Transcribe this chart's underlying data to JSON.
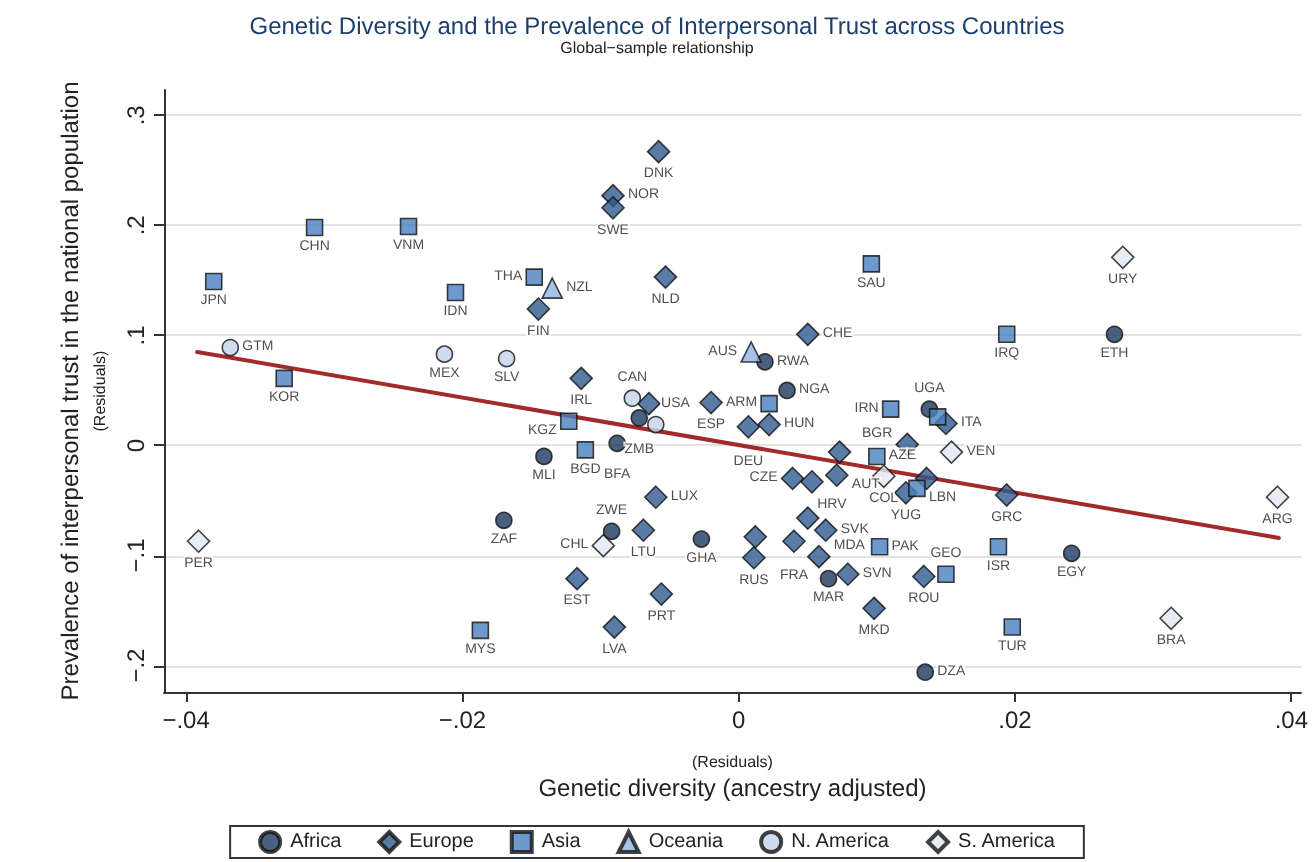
{
  "chart_data": {
    "type": "scatter",
    "title": "Genetic Diversity and the Prevalence of Interpersonal Trust across Countries",
    "subtitle": "Global−sample relationship",
    "xlabel": "(Residuals)\nGenetic diversity (ancestry adjusted)",
    "ylabel": "Prevalence of interpersonal trust in the national population\n(Residuals)",
    "xlim": [
      -0.0416,
      0.0407
    ],
    "ylim": [
      -0.224,
      0.323
    ],
    "xticks": [
      {
        "value": -0.04,
        "label": "−.04"
      },
      {
        "value": -0.02,
        "label": "−.02"
      },
      0,
      {
        "value": 0.02,
        "label": ".02"
      },
      {
        "value": 0.04,
        "label": ".04"
      }
    ],
    "yticks": [
      {
        "value": -0.2,
        "label": "−.2"
      },
      {
        "value": -0.1,
        "label": "−.1"
      },
      0,
      {
        "value": 0.1,
        "label": ".1"
      },
      {
        "value": 0.2,
        "label": ".2"
      },
      {
        "value": 0.3,
        "label": ".3"
      }
    ],
    "grid": "y",
    "legend": "bottom",
    "series": [
      {
        "name": "Africa",
        "color": "#1b3a5e",
        "marker": "circle",
        "x": [
          0.0019,
          0.0035,
          0.0272,
          0.0138,
          -0.0072,
          -0.0088,
          -0.0141,
          -0.017,
          -0.0027,
          -0.0092,
          0.0065,
          0.0241,
          0.0135
        ],
        "values": [
          0.076,
          0.05,
          0.101,
          0.033,
          0.025,
          0.002,
          -0.01,
          -0.068,
          -0.085,
          -0.078,
          -0.121,
          -0.098,
          -0.206
        ],
        "value_labels": [
          "RWA",
          "NGA",
          "ETH",
          "UGA",
          "ZMB",
          "BFA",
          "MLI",
          "ZAF",
          "GHA",
          "ZWE",
          "MAR",
          "EGY",
          "DZA"
        ]
      },
      {
        "name": "Europe",
        "color": "#2e5b8f",
        "marker": "diamond",
        "x": [
          -0.0058,
          -0.0091,
          -0.0091,
          -0.0145,
          -0.0053,
          0.005,
          -0.0114,
          -0.002,
          0.0007,
          0.0022,
          -0.0065,
          -0.006,
          -0.0069,
          -0.0117,
          -0.009,
          -0.0056,
          0.0011,
          0.004,
          0.0012,
          0.005,
          0.0063,
          0.0058,
          0.0079,
          0.0098,
          0.0134,
          0.0194,
          0.0122,
          0.015,
          0.0039,
          0.0053,
          0.0071,
          0.0073,
          0.0121,
          0.0136
        ],
        "values": [
          0.267,
          0.227,
          0.216,
          0.124,
          0.153,
          0.101,
          0.061,
          0.039,
          0.017,
          0.019,
          0.038,
          -0.047,
          -0.077,
          -0.121,
          -0.165,
          -0.135,
          -0.102,
          -0.087,
          -0.083,
          -0.066,
          -0.077,
          -0.101,
          -0.117,
          -0.148,
          -0.119,
          -0.045,
          0.001,
          0.02,
          -0.03,
          -0.033,
          -0.027,
          -0.006,
          -0.043,
          -0.03
        ],
        "value_labels": [
          "DNK",
          "NOR",
          "SWE",
          "FIN",
          "NLD",
          "CHE",
          "IRL",
          "ESP",
          "DEU",
          "HUN",
          null,
          "LUX",
          "LTU",
          "EST",
          "LVA",
          "PRT",
          "RUS",
          "FRA",
          null,
          null,
          "SVK",
          "MDA",
          "SVN",
          "MKD",
          "ROU",
          "GRC",
          "BGR",
          "ITA",
          "CZE",
          "HRV",
          "AUT",
          null,
          "YUG",
          null
        ]
      },
      {
        "name": "Asia",
        "color": "#4a7fc0",
        "marker": "square",
        "x": [
          -0.038,
          -0.0307,
          -0.0239,
          -0.0205,
          -0.0329,
          -0.0148,
          0.0096,
          0.0022,
          0.011,
          -0.0123,
          -0.0111,
          -0.0187,
          0.0194,
          0.01,
          0.0102,
          0.0129,
          0.0188,
          0.015,
          0.0198,
          0.0144
        ],
        "values": [
          0.149,
          0.198,
          0.199,
          0.139,
          0.061,
          0.153,
          0.165,
          0.038,
          0.033,
          0.022,
          -0.004,
          -0.168,
          0.101,
          -0.01,
          -0.092,
          -0.039,
          -0.092,
          -0.117,
          -0.165,
          0.026
        ],
        "value_labels": [
          "JPN",
          "CHN",
          "VNM",
          "IDN",
          "KOR",
          "THA",
          "SAU",
          "ARM",
          "IRN",
          "KGZ",
          "BGD",
          "MYS",
          "IRQ",
          "AZE",
          "PAK",
          "LBN",
          "ISR",
          "GEO",
          "TUR",
          null
        ]
      },
      {
        "name": "Oceania",
        "color": "#8fb4e0",
        "marker": "triangle",
        "x": [
          -0.0135,
          0.0009
        ],
        "values": [
          0.143,
          0.085
        ],
        "value_labels": [
          "NZL",
          "AUS"
        ]
      },
      {
        "name": "N. America",
        "color": "#c2d5ea",
        "marker": "circle",
        "x": [
          -0.0368,
          -0.0213,
          -0.0168,
          -0.0077,
          -0.006
        ],
        "values": [
          0.089,
          0.083,
          0.079,
          0.043,
          0.019
        ],
        "value_labels": [
          "GTM",
          "MEX",
          "SLV",
          "CAN",
          "USA"
        ]
      },
      {
        "name": "S. America",
        "color": "#e0e8f2",
        "marker": "diamond",
        "x": [
          -0.0391,
          -0.0098,
          0.0105,
          0.0154,
          0.0278,
          0.039,
          0.0313
        ],
        "values": [
          -0.087,
          -0.091,
          -0.028,
          -0.006,
          0.171,
          -0.047,
          -0.157
        ],
        "value_labels": [
          "PER",
          "CHL",
          "COL",
          "VEN",
          "URY",
          "ARG",
          "BRA"
        ]
      },
      {
        "type": "line",
        "color": "#a32a2a",
        "marker": "none",
        "x": [
          -0.0392,
          0.0391
        ],
        "values": [
          0.085,
          -0.084
        ]
      }
    ]
  }
}
